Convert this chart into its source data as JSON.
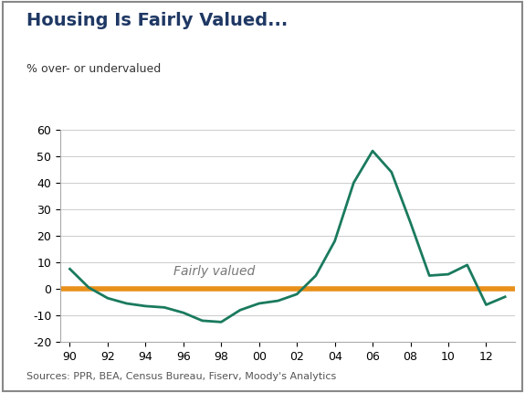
{
  "title": "Housing Is Fairly Valued...",
  "ylabel": "% over- or undervalued",
  "source_text": "Sources: PPR, BEA, Census Bureau, Fiserv, Moody's Analytics",
  "annotation": "Fairly valued",
  "title_color": "#1F3864",
  "line_color": "#1a7a5e",
  "hline_color": "#E8901A",
  "ylim": [
    -20,
    60
  ],
  "yticks": [
    -20,
    -10,
    0,
    10,
    20,
    30,
    40,
    50,
    60
  ],
  "xtick_labels": [
    "90",
    "92",
    "94",
    "96",
    "98",
    "00",
    "02",
    "04",
    "06",
    "08",
    "10",
    "12"
  ],
  "x": [
    1990,
    1991,
    1992,
    1993,
    1994,
    1995,
    1996,
    1997,
    1998,
    1999,
    2000,
    2001,
    2002,
    2003,
    2004,
    2005,
    2006,
    2007,
    2008,
    2009,
    2010,
    2011,
    2012,
    2013
  ],
  "y": [
    7.5,
    0.5,
    -3.5,
    -5.5,
    -6.5,
    -7.0,
    -9.0,
    -12.0,
    -12.5,
    -8.0,
    -5.5,
    -4.5,
    -2.0,
    5.0,
    18.0,
    40.0,
    52.0,
    44.0,
    25.0,
    5.0,
    5.5,
    9.0,
    -6.0,
    -3.0
  ]
}
